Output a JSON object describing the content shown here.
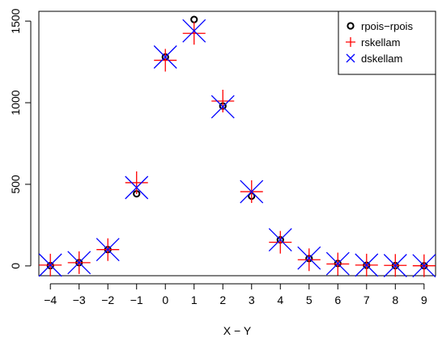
{
  "chart_data": {
    "type": "scatter",
    "title": "",
    "xlabel": "X − Y",
    "ylabel": "",
    "xlim": [
      -4.4,
      9.4
    ],
    "ylim": [
      -60,
      1560
    ],
    "x_ticks": [
      -4,
      -3,
      -2,
      -1,
      0,
      1,
      2,
      3,
      4,
      5,
      6,
      7,
      8,
      9
    ],
    "x_tick_labels": [
      "−4",
      "−3",
      "−2",
      "−1",
      "0",
      "1",
      "2",
      "3",
      "4",
      "5",
      "6",
      "7",
      "8",
      "9"
    ],
    "y_ticks": [
      0,
      500,
      1000,
      1500
    ],
    "y_tick_labels": [
      "0",
      "500",
      "1000",
      "1500"
    ],
    "legend_position": "top-right",
    "series": [
      {
        "name": "rpois−rpois",
        "marker": "circle",
        "color": "#000000",
        "x": [
          -4,
          -3,
          -2,
          -1,
          0,
          1,
          2,
          3,
          4,
          5,
          6,
          7,
          8,
          9
        ],
        "y": [
          2,
          20,
          100,
          442,
          1280,
          1510,
          980,
          428,
          160,
          45,
          15,
          4,
          2,
          1
        ]
      },
      {
        "name": "rskellam",
        "marker": "plus",
        "color": "#ff0000",
        "x": [
          -4,
          -3,
          -2,
          -1,
          0,
          1,
          2,
          3,
          4,
          5,
          6,
          7,
          8,
          9
        ],
        "y": [
          5,
          20,
          100,
          510,
          1260,
          1425,
          1010,
          455,
          145,
          38,
          12,
          5,
          3,
          1
        ]
      },
      {
        "name": "dskellam",
        "marker": "x",
        "color": "#0000ff",
        "x": [
          -4,
          -3,
          -2,
          -1,
          0,
          1,
          2,
          3,
          4,
          5,
          6,
          7,
          8,
          9
        ],
        "y": [
          5,
          20,
          100,
          480,
          1280,
          1440,
          975,
          455,
          160,
          48,
          14,
          5,
          2,
          1
        ]
      }
    ]
  }
}
